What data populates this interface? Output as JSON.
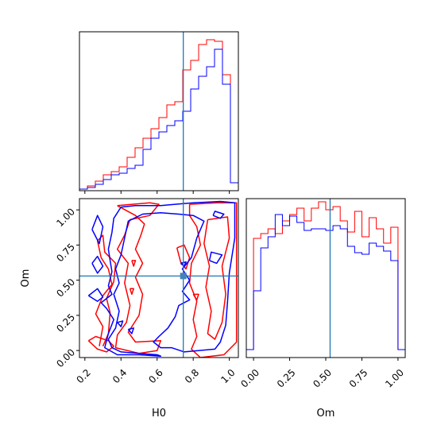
{
  "chart_data": [
    {
      "type": "histogram",
      "panel": "H0 marginal",
      "x_range": [
        0.17,
        1.05
      ],
      "xticks": [
        "0.2",
        "0.4",
        "0.6",
        "0.8",
        "1.0"
      ],
      "truth_line": 0.745,
      "colors": {
        "series_a": "#ff0000",
        "series_b": "#0000ff",
        "truth": "#1f77b4"
      },
      "bin_edges": [
        0.17,
        0.214,
        0.258,
        0.302,
        0.346,
        0.39,
        0.434,
        0.478,
        0.522,
        0.566,
        0.61,
        0.654,
        0.698,
        0.742,
        0.786,
        0.83,
        0.874,
        0.918,
        0.962,
        1.006,
        1.05
      ],
      "series": [
        {
          "values": [
            0.01,
            0.03,
            0.06,
            0.1,
            0.12,
            0.15,
            0.21,
            0.27,
            0.33,
            0.39,
            0.46,
            0.54,
            0.56,
            0.76,
            0.82,
            0.92,
            0.95,
            0.94,
            0.73,
            0.05
          ]
        },
        {
          "values": [
            0.01,
            0.02,
            0.04,
            0.07,
            0.1,
            0.11,
            0.14,
            0.16,
            0.26,
            0.33,
            0.37,
            0.41,
            0.44,
            0.5,
            0.64,
            0.72,
            0.78,
            0.89,
            0.67,
            0.05
          ]
        }
      ]
    },
    {
      "type": "histogram",
      "panel": "Om marginal",
      "xlabel": "Om",
      "x_range": [
        -0.05,
        1.05
      ],
      "xticks": [
        "0.00",
        "0.25",
        "0.50",
        "0.75",
        "1.00"
      ],
      "truth_line": 0.53,
      "bin_edges": [
        -0.05,
        0,
        0.05,
        0.1,
        0.15,
        0.2,
        0.25,
        0.3,
        0.35,
        0.4,
        0.45,
        0.5,
        0.55,
        0.6,
        0.65,
        0.7,
        0.75,
        0.8,
        0.85,
        0.9,
        0.95,
        1.0,
        1.05
      ],
      "series": [
        {
          "values": [
            0.05,
            0.75,
            0.78,
            0.81,
            0.78,
            0.86,
            0.9,
            0.94,
            0.86,
            0.94,
            0.98,
            0.93,
            0.95,
            0.86,
            0.79,
            0.92,
            0.76,
            0.88,
            0.81,
            0.72,
            0.82,
            0.05
          ]
        },
        {
          "values": [
            0.05,
            0.42,
            0.69,
            0.76,
            0.9,
            0.83,
            0.89,
            0.85,
            0.8,
            0.81,
            0.81,
            0.8,
            0.83,
            0.81,
            0.7,
            0.66,
            0.65,
            0.72,
            0.7,
            0.67,
            0.61,
            0.05
          ]
        }
      ]
    },
    {
      "type": "contour",
      "panel": "Om vs H0 joint",
      "xlabel": "H0",
      "ylabel": "Om",
      "x_range": [
        0.17,
        1.05
      ],
      "y_range": [
        -0.05,
        1.08
      ],
      "xticks": [
        "0.2",
        "0.4",
        "0.6",
        "0.8",
        "1.0"
      ],
      "yticks": [
        "0.00",
        "0.25",
        "0.50",
        "0.75",
        "1.00"
      ],
      "truth_point": [
        0.745,
        0.53
      ],
      "contours": [
        {
          "series": 0,
          "points": [
            [
              0.38,
              1.03
            ],
            [
              0.56,
              1.05
            ],
            [
              0.61,
              1.04
            ],
            [
              0.56,
              0.96
            ],
            [
              0.45,
              0.93
            ],
            [
              0.42,
              0.82
            ],
            [
              0.38,
              0.72
            ],
            [
              0.44,
              0.62
            ],
            [
              0.42,
              0.48
            ],
            [
              0.45,
              0.32
            ],
            [
              0.43,
              0.2
            ],
            [
              0.38,
              0.11
            ],
            [
              0.37,
              0.02
            ],
            [
              0.5,
              -0.02
            ],
            [
              0.6,
              0.0
            ],
            [
              0.62,
              0.07
            ],
            [
              0.48,
              0.06
            ],
            [
              0.44,
              0.13
            ],
            [
              0.5,
              0.25
            ],
            [
              0.52,
              0.4
            ],
            [
              0.48,
              0.52
            ],
            [
              0.52,
              0.62
            ],
            [
              0.48,
              0.72
            ],
            [
              0.51,
              0.82
            ],
            [
              0.53,
              0.9
            ],
            [
              0.48,
              0.96
            ],
            [
              0.38,
              1.03
            ]
          ]
        },
        {
          "series": 0,
          "points": [
            [
              0.28,
              0.03
            ],
            [
              0.3,
              0.17
            ],
            [
              0.26,
              0.26
            ],
            [
              0.3,
              0.39
            ],
            [
              0.35,
              0.47
            ],
            [
              0.33,
              0.58
            ],
            [
              0.29,
              0.66
            ],
            [
              0.27,
              0.78
            ],
            [
              0.3,
              0.82
            ],
            [
              0.31,
              0.7
            ],
            [
              0.37,
              0.62
            ],
            [
              0.36,
              0.49
            ],
            [
              0.32,
              0.37
            ],
            [
              0.34,
              0.27
            ],
            [
              0.33,
              0.12
            ],
            [
              0.3,
              0.03
            ]
          ]
        },
        {
          "series": 0,
          "points": [
            [
              0.22,
              0.07
            ],
            [
              0.27,
              0.01
            ],
            [
              0.32,
              -0.01
            ],
            [
              0.36,
              0.03
            ],
            [
              0.33,
              0.07
            ],
            [
              0.26,
              0.1
            ],
            [
              0.22,
              0.07
            ]
          ]
        },
        {
          "series": 0,
          "points": [
            [
              0.78,
              1.04
            ],
            [
              0.93,
              1.05
            ],
            [
              1.04,
              1.05
            ],
            [
              1.04,
              0.06
            ],
            [
              0.97,
              -0.03
            ],
            [
              0.84,
              -0.05
            ],
            [
              0.79,
              0.01
            ],
            [
              0.82,
              0.1
            ],
            [
              0.8,
              0.22
            ],
            [
              0.82,
              0.35
            ],
            [
              0.78,
              0.48
            ],
            [
              0.79,
              0.62
            ],
            [
              0.84,
              0.75
            ],
            [
              0.82,
              0.88
            ],
            [
              0.78,
              0.96
            ],
            [
              0.78,
              1.04
            ]
          ]
        },
        {
          "series": 0,
          "points": [
            [
              0.88,
              0.93
            ],
            [
              0.99,
              0.95
            ],
            [
              1.0,
              0.8
            ],
            [
              0.96,
              0.6
            ],
            [
              0.98,
              0.4
            ],
            [
              0.96,
              0.2
            ],
            [
              0.92,
              0.08
            ],
            [
              0.88,
              0.12
            ],
            [
              0.9,
              0.28
            ],
            [
              0.87,
              0.45
            ],
            [
              0.89,
              0.6
            ],
            [
              0.86,
              0.76
            ],
            [
              0.88,
              0.93
            ]
          ]
        },
        {
          "series": 0,
          "points": [
            [
              0.71,
              0.73
            ],
            [
              0.73,
              0.63
            ],
            [
              0.76,
              0.58
            ],
            [
              0.78,
              0.66
            ],
            [
              0.75,
              0.75
            ],
            [
              0.71,
              0.73
            ]
          ]
        },
        {
          "series": 0,
          "points": [
            [
              0.45,
              0.44
            ],
            [
              0.46,
              0.4
            ],
            [
              0.47,
              0.44
            ],
            [
              0.45,
              0.44
            ]
          ]
        },
        {
          "series": 0,
          "points": [
            [
              0.46,
              0.64
            ],
            [
              0.47,
              0.6
            ],
            [
              0.48,
              0.64
            ],
            [
              0.46,
              0.64
            ]
          ]
        },
        {
          "series": 0,
          "points": [
            [
              0.8,
              0.4
            ],
            [
              0.82,
              0.36
            ],
            [
              0.83,
              0.4
            ],
            [
              0.8,
              0.4
            ]
          ]
        },
        {
          "series": 1,
          "points": [
            [
              0.4,
              1.02
            ],
            [
              0.48,
              1.03
            ],
            [
              0.62,
              1.03
            ],
            [
              0.7,
              1.04
            ],
            [
              0.8,
              1.05
            ],
            [
              0.95,
              1.06
            ],
            [
              1.03,
              1.05
            ],
            [
              1.03,
              0.8
            ],
            [
              1.0,
              0.55
            ],
            [
              0.99,
              0.35
            ],
            [
              0.98,
              0.18
            ],
            [
              0.95,
              0.06
            ],
            [
              0.92,
              0.01
            ],
            [
              0.83,
              0.0
            ],
            [
              0.75,
              -0.01
            ],
            [
              0.68,
              0.02
            ],
            [
              0.62,
              0.02
            ],
            [
              0.58,
              0.06
            ],
            [
              0.61,
              0.1
            ],
            [
              0.66,
              0.16
            ],
            [
              0.7,
              0.24
            ],
            [
              0.72,
              0.32
            ],
            [
              0.78,
              0.36
            ],
            [
              0.74,
              0.42
            ],
            [
              0.78,
              0.5
            ],
            [
              0.74,
              0.58
            ],
            [
              0.79,
              0.66
            ],
            [
              0.82,
              0.8
            ],
            [
              0.86,
              0.92
            ],
            [
              0.8,
              0.96
            ],
            [
              0.72,
              0.97
            ],
            [
              0.62,
              0.98
            ],
            [
              0.52,
              0.97
            ],
            [
              0.44,
              0.92
            ],
            [
              0.42,
              0.8
            ],
            [
              0.4,
              0.68
            ],
            [
              0.37,
              0.58
            ],
            [
              0.39,
              0.48
            ],
            [
              0.36,
              0.4
            ],
            [
              0.39,
              0.28
            ],
            [
              0.37,
              0.16
            ],
            [
              0.33,
              0.08
            ],
            [
              0.35,
              0.02
            ],
            [
              0.4,
              -0.01
            ],
            [
              0.5,
              -0.02
            ],
            [
              0.6,
              -0.03
            ],
            [
              0.62,
              -0.04
            ],
            [
              0.5,
              -0.03
            ],
            [
              0.38,
              -0.03
            ],
            [
              0.31,
              0.02
            ],
            [
              0.33,
              0.12
            ],
            [
              0.36,
              0.22
            ],
            [
              0.32,
              0.3
            ],
            [
              0.29,
              0.34
            ],
            [
              0.35,
              0.4
            ],
            [
              0.33,
              0.46
            ],
            [
              0.35,
              0.56
            ],
            [
              0.34,
              0.64
            ],
            [
              0.33,
              0.72
            ],
            [
              0.35,
              0.84
            ],
            [
              0.36,
              0.94
            ],
            [
              0.4,
              1.02
            ]
          ]
        },
        {
          "series": 1,
          "points": [
            [
              0.24,
              0.86
            ],
            [
              0.27,
              0.96
            ],
            [
              0.3,
              0.88
            ],
            [
              0.28,
              0.76
            ],
            [
              0.24,
              0.86
            ]
          ]
        },
        {
          "series": 1,
          "points": [
            [
              0.22,
              0.39
            ],
            [
              0.27,
              0.35
            ],
            [
              0.3,
              0.38
            ],
            [
              0.27,
              0.44
            ],
            [
              0.22,
              0.39
            ]
          ]
        },
        {
          "series": 1,
          "points": [
            [
              0.24,
              0.62
            ],
            [
              0.27,
              0.55
            ],
            [
              0.3,
              0.6
            ],
            [
              0.27,
              0.67
            ],
            [
              0.24,
              0.62
            ]
          ]
        },
        {
          "series": 1,
          "points": [
            [
              0.89,
              0.64
            ],
            [
              0.93,
              0.62
            ],
            [
              0.96,
              0.68
            ],
            [
              0.9,
              0.7
            ],
            [
              0.89,
              0.64
            ]
          ]
        },
        {
          "series": 1,
          "points": [
            [
              0.91,
              0.96
            ],
            [
              0.95,
              0.94
            ],
            [
              0.97,
              0.97
            ],
            [
              0.92,
              0.99
            ],
            [
              0.91,
              0.96
            ]
          ]
        },
        {
          "series": 1,
          "points": [
            [
              0.38,
              0.2
            ],
            [
              0.4,
              0.17
            ],
            [
              0.41,
              0.21
            ],
            [
              0.38,
              0.2
            ]
          ]
        },
        {
          "series": 1,
          "points": [
            [
              0.44,
              0.15
            ],
            [
              0.46,
              0.12
            ],
            [
              0.47,
              0.16
            ],
            [
              0.44,
              0.15
            ]
          ]
        },
        {
          "series": 1,
          "points": [
            [
              0.73,
              0.62
            ],
            [
              0.75,
              0.6
            ],
            [
              0.76,
              0.63
            ],
            [
              0.73,
              0.62
            ]
          ]
        }
      ]
    }
  ]
}
